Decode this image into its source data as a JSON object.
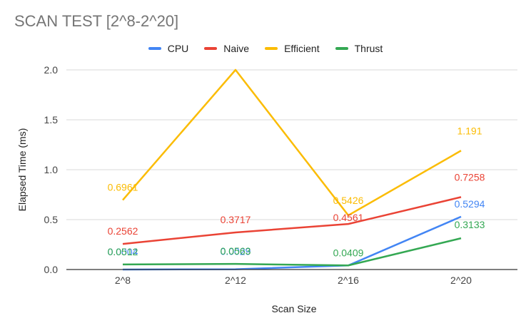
{
  "chart_data": {
    "type": "line",
    "title": "SCAN TEST [2^8-2^20]",
    "xlabel": "Scan Size",
    "ylabel": "Elapsed Time (ms)",
    "categories": [
      "2^8",
      "2^12",
      "2^16",
      "2^20"
    ],
    "ylim": [
      0,
      2.0
    ],
    "yticks": [
      "0.0",
      "0.5",
      "1.0",
      "1.5",
      "2.0"
    ],
    "grid": true,
    "legend_position": "top",
    "series": [
      {
        "name": "CPU",
        "color": "#4285F4",
        "values": [
          0.0004,
          0.0029,
          0.0409,
          0.5294
        ],
        "labels": [
          "0.0004",
          "0.0029",
          "",
          "0.5294"
        ]
      },
      {
        "name": "Naive",
        "color": "#EA4335",
        "values": [
          0.2562,
          0.3717,
          0.4561,
          0.7258
        ],
        "labels": [
          "0.2562",
          "0.3717",
          "0.4561",
          "0.7258"
        ]
      },
      {
        "name": "Efficient",
        "color": "#FBBC04",
        "values": [
          0.6961,
          2.0,
          0.5426,
          1.191
        ],
        "labels": [
          "0.6961",
          "",
          "0.5426",
          "1.191"
        ]
      },
      {
        "name": "Thrust",
        "color": "#34A853",
        "values": [
          0.0512,
          0.0563,
          0.0409,
          0.3133
        ],
        "labels": [
          "0.0512",
          "0.0563",
          "0.0409",
          "0.3133"
        ]
      }
    ]
  }
}
